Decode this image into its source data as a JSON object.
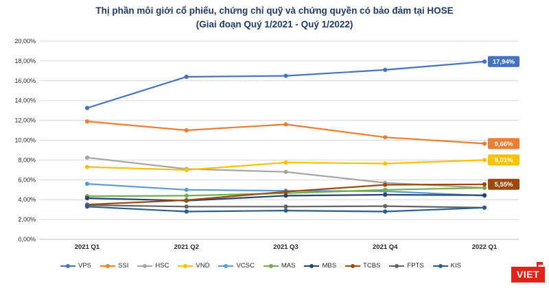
{
  "title": {
    "line1": "Thị phần môi giới cổ phiếu, chứng chỉ quỹ và chứng quyền có bảo đảm tại HOSE",
    "line2": "(Giai đoạn Quý 1/2021 - Quý 1/2022)"
  },
  "logo": {
    "text": "VIET"
  },
  "chart_data": {
    "type": "line",
    "categories": [
      "2021 Q1",
      "2021 Q2",
      "2021 Q3",
      "2021 Q4",
      "2022 Q1"
    ],
    "ylim": [
      0,
      20
    ],
    "y_tick_step": 2,
    "y_tick_labels": [
      "0,00%",
      "2,00%",
      "4,00%",
      "6,00%",
      "8,00%",
      "10,00%",
      "12,00%",
      "14,00%",
      "16,00%",
      "18,00%",
      "20,00%"
    ],
    "grid": true,
    "legend_position": "bottom",
    "series": [
      {
        "name": "VPS",
        "color": "#4472C4",
        "values": [
          13.25,
          16.4,
          16.5,
          17.1,
          17.94
        ],
        "end_label": "17,94%"
      },
      {
        "name": "SSI",
        "color": "#ED7D31",
        "values": [
          11.9,
          11.0,
          11.6,
          10.3,
          9.66
        ],
        "end_label": "9,66%"
      },
      {
        "name": "HSC",
        "color": "#A5A5A5",
        "values": [
          8.25,
          7.1,
          6.8,
          5.7,
          5.2
        ]
      },
      {
        "name": "VND",
        "color": "#FFC000",
        "values": [
          7.3,
          7.0,
          7.75,
          7.65,
          8.01
        ],
        "end_label": "8,01%"
      },
      {
        "name": "VCSC",
        "color": "#5B9BD5",
        "values": [
          5.6,
          5.0,
          4.9,
          4.85,
          4.4
        ]
      },
      {
        "name": "MAS",
        "color": "#70AD47",
        "values": [
          4.35,
          4.4,
          4.65,
          5.0,
          5.2
        ]
      },
      {
        "name": "MBS",
        "color": "#264478",
        "values": [
          4.15,
          3.9,
          4.4,
          4.5,
          4.45
        ]
      },
      {
        "name": "TCBS",
        "color": "#9E480E",
        "values": [
          3.5,
          3.95,
          4.8,
          5.5,
          5.55
        ],
        "end_label": "5,55%"
      },
      {
        "name": "FPTS",
        "color": "#636363",
        "values": [
          3.45,
          3.3,
          3.3,
          3.35,
          3.2
        ]
      },
      {
        "name": "KIS",
        "color": "#255E91",
        "values": [
          3.3,
          2.8,
          2.9,
          2.8,
          3.2
        ]
      }
    ]
  }
}
